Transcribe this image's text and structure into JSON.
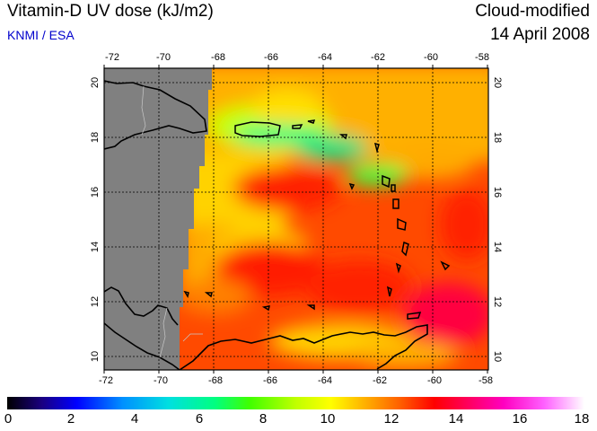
{
  "header": {
    "title": "Vitamin-D UV dose (kJ/m2)",
    "credit": "KNMI / ESA",
    "type_label": "Cloud-modified",
    "date": "14 April 2008"
  },
  "map": {
    "lon_ticks": [
      "-72",
      "-70",
      "-68",
      "-66",
      "-64",
      "-62",
      "-60",
      "-58"
    ],
    "lat_ticks": [
      "10",
      "12",
      "14",
      "16",
      "18",
      "20"
    ],
    "lon_range": [
      -72,
      -58
    ],
    "lat_range": [
      9.5,
      20.5
    ],
    "grid": true,
    "no_data_color": "#808080",
    "coastline_color": "#000000"
  },
  "colorbar": {
    "labels": [
      "0",
      "2",
      "4",
      "6",
      "8",
      "10",
      "12",
      "14",
      "16",
      "18"
    ],
    "range": [
      0,
      18
    ]
  }
}
